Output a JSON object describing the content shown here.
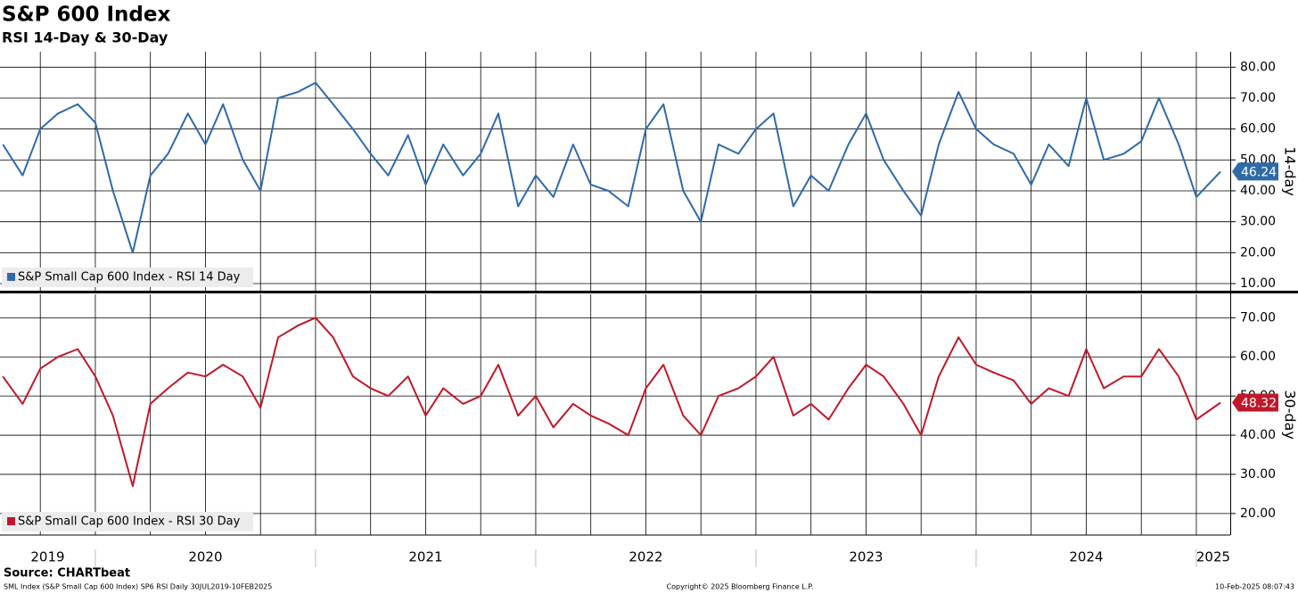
{
  "header": {
    "title": "S&P 600 Index",
    "subtitle": "RSI 14-Day & 30-Day"
  },
  "chart_data": [
    {
      "type": "line",
      "side_label": "14-day",
      "x": [
        2019.58,
        2019.67,
        2019.75,
        2019.83,
        2019.92,
        2020.0,
        2020.08,
        2020.17,
        2020.25,
        2020.33,
        2020.42,
        2020.5,
        2020.58,
        2020.67,
        2020.75,
        2020.83,
        2020.92,
        2021.0,
        2021.08,
        2021.17,
        2021.25,
        2021.33,
        2021.42,
        2021.5,
        2021.58,
        2021.67,
        2021.75,
        2021.83,
        2021.92,
        2022.0,
        2022.08,
        2022.17,
        2022.25,
        2022.33,
        2022.42,
        2022.5,
        2022.58,
        2022.67,
        2022.75,
        2022.83,
        2022.92,
        2023.0,
        2023.08,
        2023.17,
        2023.25,
        2023.33,
        2023.42,
        2023.5,
        2023.58,
        2023.67,
        2023.75,
        2023.83,
        2023.92,
        2024.0,
        2024.08,
        2024.17,
        2024.25,
        2024.33,
        2024.42,
        2024.5,
        2024.58,
        2024.67,
        2024.75,
        2024.83,
        2024.92,
        2025.0,
        2025.11
      ],
      "series": [
        {
          "name": "S&P Small Cap 600 Index - RSI 14 Day",
          "color": "#2e6aa8",
          "values": [
            55,
            45,
            60,
            65,
            68,
            62,
            40,
            20,
            45,
            52,
            65,
            55,
            68,
            50,
            40,
            70,
            72,
            75,
            68,
            60,
            52,
            45,
            58,
            42,
            55,
            45,
            52,
            65,
            35,
            45,
            38,
            55,
            42,
            40,
            35,
            60,
            68,
            40,
            30,
            55,
            52,
            60,
            65,
            35,
            45,
            40,
            55,
            65,
            50,
            40,
            32,
            55,
            72,
            60,
            55,
            52,
            42,
            55,
            48,
            70,
            50,
            52,
            56,
            70,
            55,
            38,
            46.24
          ]
        }
      ],
      "xlim": [
        2019.567,
        2025.154
      ],
      "xticks": [
        2019.75,
        2020,
        2020.25,
        2020.5,
        2020.75,
        2021,
        2021.25,
        2021.5,
        2021.75,
        2022,
        2022.25,
        2022.5,
        2022.75,
        2023,
        2023.25,
        2023.5,
        2023.75,
        2024,
        2024.25,
        2024.5,
        2024.75,
        2025
      ],
      "ylim": [
        7.7,
        85
      ],
      "yticks": [
        {
          "value": 10,
          "label": "10.00"
        },
        {
          "value": 20,
          "label": "20.00"
        },
        {
          "value": 30,
          "label": "30.00"
        },
        {
          "value": 40,
          "label": "40.00"
        },
        {
          "value": 50,
          "label": "50.00"
        },
        {
          "value": 60,
          "label": "60.00"
        },
        {
          "value": 70,
          "label": "70.00"
        },
        {
          "value": 80,
          "label": "80.00"
        }
      ],
      "grid": true
    },
    {
      "type": "line",
      "side_label": "30-day",
      "x": [
        2019.58,
        2019.67,
        2019.75,
        2019.83,
        2019.92,
        2020.0,
        2020.08,
        2020.17,
        2020.25,
        2020.33,
        2020.42,
        2020.5,
        2020.58,
        2020.67,
        2020.75,
        2020.83,
        2020.92,
        2021.0,
        2021.08,
        2021.17,
        2021.25,
        2021.33,
        2021.42,
        2021.5,
        2021.58,
        2021.67,
        2021.75,
        2021.83,
        2021.92,
        2022.0,
        2022.08,
        2022.17,
        2022.25,
        2022.33,
        2022.42,
        2022.5,
        2022.58,
        2022.67,
        2022.75,
        2022.83,
        2022.92,
        2023.0,
        2023.08,
        2023.17,
        2023.25,
        2023.33,
        2023.42,
        2023.5,
        2023.58,
        2023.67,
        2023.75,
        2023.83,
        2023.92,
        2024.0,
        2024.08,
        2024.17,
        2024.25,
        2024.33,
        2024.42,
        2024.5,
        2024.58,
        2024.67,
        2024.75,
        2024.83,
        2024.92,
        2025.0,
        2025.11
      ],
      "series": [
        {
          "name": "S&P Small Cap 600 Index - RSI 30 Day",
          "color": "#c0182a",
          "values": [
            55,
            48,
            57,
            60,
            62,
            55,
            45,
            27,
            48,
            52,
            56,
            55,
            58,
            55,
            47,
            65,
            68,
            70,
            65,
            55,
            52,
            50,
            55,
            45,
            52,
            48,
            50,
            58,
            45,
            50,
            42,
            48,
            45,
            43,
            40,
            52,
            58,
            45,
            40,
            50,
            52,
            55,
            60,
            45,
            48,
            44,
            52,
            58,
            55,
            48,
            40,
            55,
            65,
            58,
            56,
            54,
            48,
            52,
            50,
            62,
            52,
            55,
            55,
            62,
            55,
            44,
            48.32
          ]
        }
      ],
      "xlim": [
        2019.567,
        2025.154
      ],
      "xticks": [
        2019.75,
        2020,
        2020.25,
        2020.5,
        2020.75,
        2021,
        2021.25,
        2021.5,
        2021.75,
        2022,
        2022.25,
        2022.5,
        2022.75,
        2023,
        2023.25,
        2023.5,
        2023.75,
        2024,
        2024.25,
        2024.5,
        2024.75,
        2025
      ],
      "year_labels": [
        "2019",
        "2020",
        "2021",
        "2022",
        "2023",
        "2024",
        "2025"
      ],
      "ylim": [
        14.5,
        76
      ],
      "yticks": [
        {
          "value": 20,
          "label": "20.00"
        },
        {
          "value": 30,
          "label": "30.00"
        },
        {
          "value": 40,
          "label": "40.00"
        },
        {
          "value": 50,
          "label": "50.00"
        },
        {
          "value": 60,
          "label": "60.00"
        },
        {
          "value": 70,
          "label": "70.00"
        }
      ],
      "grid": true
    }
  ],
  "footer": {
    "source": "Source: CHARTbeat",
    "left": "SML Index (S&P Small Cap 600 Index) SP6 RSI  Daily 30JUL2019-10FEB2025",
    "center": "Copyright© 2025 Bloomberg Finance L.P.",
    "right": "10-Feb-2025 08:07:43"
  }
}
